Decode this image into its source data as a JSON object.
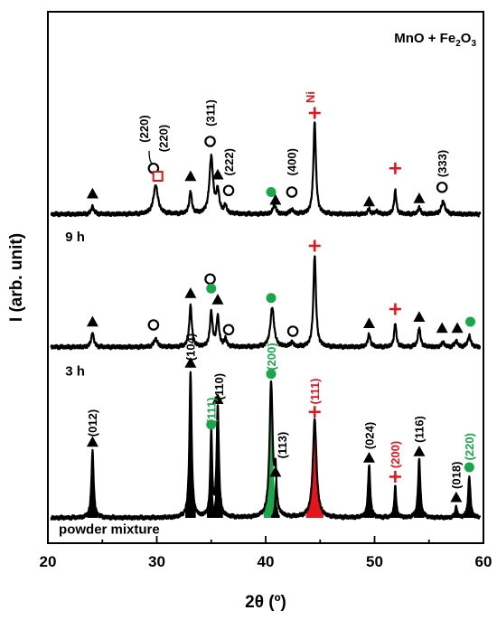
{
  "chart_data": {
    "type": "line",
    "title": "MnO + Fe₂O₃",
    "title_parts": {
      "main": "MnO + Fe",
      "sub": "2",
      "tail": "O",
      "sub2": "3"
    },
    "xlabel": "2θ (º)",
    "ylabel": "I (arb. unit)",
    "xlim": [
      20,
      60
    ],
    "xticks": [
      20,
      30,
      40,
      50,
      60
    ],
    "colors": {
      "line": "#000000",
      "green": "#1aa64a",
      "red": "#e8141b"
    },
    "series": [
      {
        "name": "powder mixture",
        "baseline": 0.0,
        "peaks": [
          {
            "x": 24.1,
            "h": 0.42,
            "w": 0.12,
            "fill": "black"
          },
          {
            "x": 33.1,
            "h": 0.92,
            "w": 0.12,
            "fill": "black"
          },
          {
            "x": 35.0,
            "h": 0.54,
            "w": 0.1,
            "fill": "black"
          },
          {
            "x": 35.6,
            "h": 0.7,
            "w": 0.12,
            "fill": "black"
          },
          {
            "x": 40.5,
            "h": 0.85,
            "w": 0.17,
            "fill": "green"
          },
          {
            "x": 40.9,
            "h": 0.24,
            "w": 0.1,
            "fill": "black"
          },
          {
            "x": 44.5,
            "h": 0.62,
            "w": 0.2,
            "fill": "red"
          },
          {
            "x": 49.5,
            "h": 0.33,
            "w": 0.12,
            "fill": "black"
          },
          {
            "x": 51.9,
            "h": 0.2,
            "w": 0.1,
            "fill": "black"
          },
          {
            "x": 54.1,
            "h": 0.37,
            "w": 0.12,
            "fill": "black"
          },
          {
            "x": 57.5,
            "h": 0.07,
            "w": 0.1,
            "fill": "black"
          },
          {
            "x": 58.7,
            "h": 0.26,
            "w": 0.12,
            "fill": "black"
          }
        ]
      },
      {
        "name": "3 h",
        "baseline": 1.08,
        "peaks": [
          {
            "x": 24.1,
            "h": 0.09,
            "w": 0.14
          },
          {
            "x": 29.9,
            "h": 0.05,
            "w": 0.2
          },
          {
            "x": 33.1,
            "h": 0.26,
            "w": 0.14
          },
          {
            "x": 35.0,
            "h": 0.22,
            "w": 0.14
          },
          {
            "x": 35.6,
            "h": 0.19,
            "w": 0.14
          },
          {
            "x": 36.3,
            "h": 0.05,
            "w": 0.14
          },
          {
            "x": 40.6,
            "h": 0.25,
            "w": 0.2
          },
          {
            "x": 42.4,
            "h": 0.03,
            "w": 0.14
          },
          {
            "x": 44.5,
            "h": 0.58,
            "w": 0.14
          },
          {
            "x": 49.5,
            "h": 0.08,
            "w": 0.14
          },
          {
            "x": 51.9,
            "h": 0.15,
            "w": 0.12
          },
          {
            "x": 54.1,
            "h": 0.12,
            "w": 0.14
          },
          {
            "x": 56.3,
            "h": 0.03,
            "w": 0.14
          },
          {
            "x": 57.5,
            "h": 0.04,
            "w": 0.14
          },
          {
            "x": 58.7,
            "h": 0.07,
            "w": 0.16
          }
        ]
      },
      {
        "name": "9 h",
        "baseline": 1.92,
        "peaks": [
          {
            "x": 24.1,
            "h": 0.05,
            "w": 0.14
          },
          {
            "x": 29.9,
            "h": 0.18,
            "w": 0.25
          },
          {
            "x": 33.1,
            "h": 0.14,
            "w": 0.14
          },
          {
            "x": 35.0,
            "h": 0.36,
            "w": 0.2
          },
          {
            "x": 35.6,
            "h": 0.14,
            "w": 0.16
          },
          {
            "x": 36.3,
            "h": 0.05,
            "w": 0.14
          },
          {
            "x": 40.8,
            "h": 0.06,
            "w": 0.16
          },
          {
            "x": 42.4,
            "h": 0.03,
            "w": 0.16
          },
          {
            "x": 44.5,
            "h": 0.58,
            "w": 0.14
          },
          {
            "x": 49.5,
            "h": 0.03,
            "w": 0.14
          },
          {
            "x": 50.2,
            "h": 0.02,
            "w": 0.14
          },
          {
            "x": 51.9,
            "h": 0.15,
            "w": 0.12
          },
          {
            "x": 54.1,
            "h": 0.04,
            "w": 0.14
          },
          {
            "x": 56.3,
            "h": 0.08,
            "w": 0.2
          }
        ]
      }
    ],
    "markers": [
      {
        "type": "triangle",
        "x": 24.1,
        "y": 0.48
      },
      {
        "type": "triangle",
        "x": 33.1,
        "y": 0.98
      },
      {
        "type": "triangle",
        "x": 35.6,
        "y": 0.75
      },
      {
        "type": "circle-green",
        "x": 35.0,
        "y": 0.59
      },
      {
        "type": "circle-green",
        "x": 40.5,
        "y": 0.91
      },
      {
        "type": "triangle",
        "x": 40.9,
        "y": 0.29
      },
      {
        "type": "plus-red",
        "x": 44.5,
        "y": 0.67
      },
      {
        "type": "triangle",
        "x": 49.5,
        "y": 0.38
      },
      {
        "type": "plus-red",
        "x": 51.9,
        "y": 0.26
      },
      {
        "type": "triangle",
        "x": 54.1,
        "y": 0.42
      },
      {
        "type": "triangle",
        "x": 57.5,
        "y": 0.13
      },
      {
        "type": "circle-green",
        "x": 58.7,
        "y": 0.32
      },
      {
        "type": "triangle",
        "x": 24.1,
        "y": 1.24
      },
      {
        "type": "circle-open",
        "x": 29.7,
        "y": 1.22
      },
      {
        "type": "triangle",
        "x": 33.1,
        "y": 1.42
      },
      {
        "type": "circle-open",
        "x": 34.9,
        "y": 1.51
      },
      {
        "type": "circle-green",
        "x": 35.0,
        "y": 1.45
      },
      {
        "type": "triangle",
        "x": 35.6,
        "y": 1.38
      },
      {
        "type": "circle-open",
        "x": 36.6,
        "y": 1.19
      },
      {
        "type": "circle-green",
        "x": 40.5,
        "y": 1.39
      },
      {
        "type": "circle-open",
        "x": 42.5,
        "y": 1.18
      },
      {
        "type": "plus-red",
        "x": 44.5,
        "y": 1.72
      },
      {
        "type": "triangle",
        "x": 49.5,
        "y": 1.23
      },
      {
        "type": "plus-red",
        "x": 51.9,
        "y": 1.32
      },
      {
        "type": "triangle",
        "x": 54.1,
        "y": 1.27
      },
      {
        "type": "triangle",
        "x": 56.2,
        "y": 1.2
      },
      {
        "type": "triangle",
        "x": 57.6,
        "y": 1.2
      },
      {
        "type": "circle-green",
        "x": 58.8,
        "y": 1.24
      },
      {
        "type": "triangle",
        "x": 24.1,
        "y": 2.05
      },
      {
        "type": "circle-open",
        "x": 29.7,
        "y": 2.21
      },
      {
        "type": "square-red",
        "x": 30.1,
        "y": 2.16
      },
      {
        "type": "triangle",
        "x": 33.1,
        "y": 2.16
      },
      {
        "type": "circle-open",
        "x": 34.9,
        "y": 2.38
      },
      {
        "type": "triangle",
        "x": 35.6,
        "y": 2.17
      },
      {
        "type": "circle-open",
        "x": 36.6,
        "y": 2.07
      },
      {
        "type": "circle-green",
        "x": 40.5,
        "y": 2.06
      },
      {
        "type": "triangle",
        "x": 40.9,
        "y": 2.01
      },
      {
        "type": "circle-open",
        "x": 42.4,
        "y": 2.06
      },
      {
        "type": "plus-red",
        "x": 44.5,
        "y": 2.56
      },
      {
        "type": "triangle",
        "x": 49.5,
        "y": 2.0
      },
      {
        "type": "plus-red",
        "x": 51.9,
        "y": 2.21
      },
      {
        "type": "triangle",
        "x": 54.1,
        "y": 2.02
      },
      {
        "type": "circle-open",
        "x": 56.2,
        "y": 2.09
      }
    ],
    "annotations": [
      {
        "text": "(012)",
        "x": 24.5,
        "y": 0.6,
        "color": "black",
        "rotate": true
      },
      {
        "text": "(104)",
        "x": 33.5,
        "y": 1.08,
        "color": "black",
        "rotate": true
      },
      {
        "text": "(110)",
        "x": 36.1,
        "y": 0.83,
        "color": "black",
        "rotate": true
      },
      {
        "text": "(111)",
        "x": 35.4,
        "y": 0.68,
        "color": "green",
        "rotate": true
      },
      {
        "text": "(200)",
        "x": 40.9,
        "y": 1.02,
        "color": "green",
        "rotate": true
      },
      {
        "text": "(113)",
        "x": 41.9,
        "y": 0.46,
        "color": "black",
        "rotate": true
      },
      {
        "text": "(111)",
        "x": 44.9,
        "y": 0.8,
        "color": "red",
        "rotate": true
      },
      {
        "text": "(024)",
        "x": 49.9,
        "y": 0.52,
        "color": "black",
        "rotate": true
      },
      {
        "text": "(200)",
        "x": 52.3,
        "y": 0.4,
        "color": "red",
        "rotate": true
      },
      {
        "text": "(116)",
        "x": 54.5,
        "y": 0.56,
        "color": "black",
        "rotate": true
      },
      {
        "text": "(018)",
        "x": 57.9,
        "y": 0.27,
        "color": "black",
        "rotate": true
      },
      {
        "text": "(220)",
        "x": 59.1,
        "y": 0.45,
        "color": "green",
        "rotate": true
      },
      {
        "text": "(220)",
        "x": 29.2,
        "y": 2.46,
        "color": "black",
        "rotate": true
      },
      {
        "text": "(220)",
        "x": 31.0,
        "y": 2.4,
        "color": "black",
        "rotate": true
      },
      {
        "text": "(311)",
        "x": 35.3,
        "y": 2.56,
        "color": "black",
        "rotate": true
      },
      {
        "text": "(222)",
        "x": 37.0,
        "y": 2.25,
        "color": "black",
        "rotate": true
      },
      {
        "text": "(400)",
        "x": 42.8,
        "y": 2.25,
        "color": "black",
        "rotate": true
      },
      {
        "text": "(333)",
        "x": 56.6,
        "y": 2.24,
        "color": "black",
        "rotate": true
      },
      {
        "text": "Ni",
        "x": 44.5,
        "y": 2.66,
        "color": "red",
        "rotate": true
      }
    ],
    "series_labels": [
      {
        "text": "powder mixture",
        "x": 21.0,
        "y": -0.1
      },
      {
        "text": "3 h",
        "x": 21.6,
        "y": 0.9
      },
      {
        "text": "9 h",
        "x": 21.6,
        "y": 1.75
      }
    ],
    "legend": "none",
    "grid": false
  }
}
